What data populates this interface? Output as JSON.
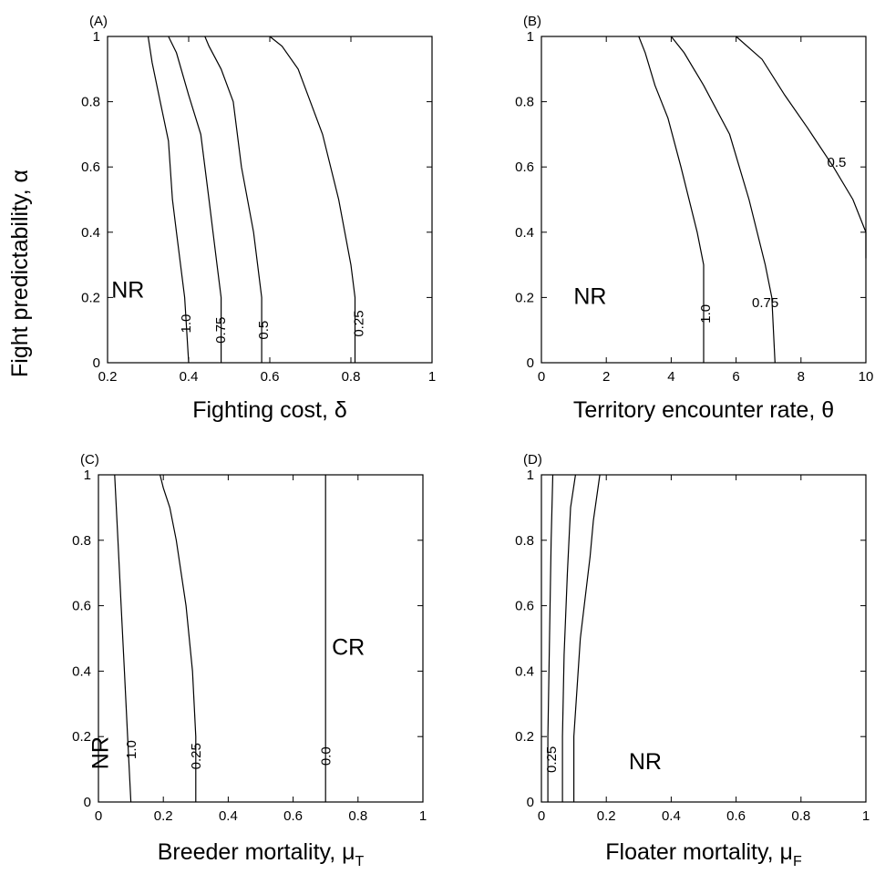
{
  "ylabel": "Fight predictability, α",
  "chart_data": [
    {
      "type": "line",
      "panel": "(A)",
      "xlabel_main": "Fighting cost, ",
      "xlabel_symbol": "δ",
      "xlabel_sub": "",
      "xlim": [
        0.2,
        1
      ],
      "ylim": [
        0,
        1
      ],
      "xticks": [
        "0.2",
        "0.4",
        "0.6",
        "0.8",
        "1"
      ],
      "yticks": [
        "0",
        "0.2",
        "0.4",
        "0.6",
        "0.8",
        "1"
      ],
      "series": [
        {
          "label": "1.0",
          "label_at": [
            0.405,
            0.12
          ],
          "label_rot": -90,
          "x": [
            0.4,
            0.39,
            0.37,
            0.36,
            0.35,
            0.33,
            0.31,
            0.3
          ],
          "y": [
            0,
            0.2,
            0.4,
            0.5,
            0.68,
            0.8,
            0.92,
            1.0
          ]
        },
        {
          "label": "0.75",
          "label_at": [
            0.49,
            0.1
          ],
          "label_rot": -90,
          "x": [
            0.48,
            0.48,
            0.47,
            0.45,
            0.43,
            0.4,
            0.37,
            0.35
          ],
          "y": [
            0,
            0.2,
            0.3,
            0.5,
            0.7,
            0.82,
            0.95,
            1.0
          ]
        },
        {
          "label": "0.5",
          "label_at": [
            0.595,
            0.1
          ],
          "label_rot": -90,
          "x": [
            0.58,
            0.58,
            0.56,
            0.53,
            0.51,
            0.48,
            0.45,
            0.44
          ],
          "y": [
            0,
            0.2,
            0.4,
            0.6,
            0.8,
            0.9,
            0.97,
            1.0
          ]
        },
        {
          "label": "0.25",
          "label_at": [
            0.83,
            0.12
          ],
          "label_rot": -90,
          "x": [
            0.81,
            0.81,
            0.8,
            0.77,
            0.73,
            0.7,
            0.67,
            0.63,
            0.6
          ],
          "y": [
            0,
            0.2,
            0.3,
            0.5,
            0.7,
            0.8,
            0.9,
            0.97,
            1.0
          ]
        }
      ],
      "regions": [
        {
          "text": "NR",
          "at": [
            0.25,
            0.2
          ]
        }
      ]
    },
    {
      "type": "line",
      "panel": "(B)",
      "xlabel_main": "Territory encounter rate, ",
      "xlabel_symbol": "θ",
      "xlabel_sub": "",
      "xlim": [
        0,
        10
      ],
      "ylim": [
        0,
        1
      ],
      "xticks": [
        "0",
        "2",
        "4",
        "6",
        "8",
        "10"
      ],
      "yticks": [
        "0",
        "0.2",
        "0.4",
        "0.6",
        "0.8",
        "1"
      ],
      "series": [
        {
          "label": "1.0",
          "label_at": [
            5.2,
            0.15
          ],
          "label_rot": -90,
          "x": [
            5.0,
            5.0,
            4.8,
            4.3,
            3.9,
            3.5,
            3.2,
            3.0
          ],
          "y": [
            0,
            0.3,
            0.4,
            0.6,
            0.75,
            0.85,
            0.95,
            1.0
          ]
        },
        {
          "label": "0.75",
          "label_at": [
            6.9,
            0.17
          ],
          "label_rot": 0,
          "x": [
            7.2,
            7.1,
            6.9,
            6.4,
            5.8,
            5.0,
            4.4,
            4.0
          ],
          "y": [
            0,
            0.2,
            0.3,
            0.5,
            0.7,
            0.85,
            0.95,
            1.0
          ]
        },
        {
          "label": "0.5",
          "label_at": [
            9.1,
            0.6
          ],
          "label_rot": 0,
          "x": [
            10,
            10,
            9.6,
            9.0,
            8.2,
            7.5,
            6.8,
            6.0
          ],
          "y": [
            0.32,
            0.4,
            0.5,
            0.6,
            0.72,
            0.82,
            0.93,
            1.0
          ]
        }
      ],
      "regions": [
        {
          "text": "NR",
          "at": [
            1.5,
            0.18
          ]
        }
      ]
    },
    {
      "type": "line",
      "panel": "(C)",
      "xlabel_main": "Breeder mortality, ",
      "xlabel_symbol": "μ",
      "xlabel_sub": "T",
      "xlim": [
        0,
        1
      ],
      "ylim": [
        0,
        1
      ],
      "xticks": [
        "0",
        "0.2",
        "0.4",
        "0.6",
        "0.8",
        "1"
      ],
      "yticks": [
        "0",
        "0.2",
        "0.4",
        "0.6",
        "0.8",
        "1"
      ],
      "series": [
        {
          "label": "1.0",
          "label_at": [
            0.115,
            0.16
          ],
          "label_rot": -90,
          "x": [
            0.1,
            0.09,
            0.08,
            0.07,
            0.06,
            0.05
          ],
          "y": [
            0,
            0.2,
            0.4,
            0.6,
            0.8,
            1.0
          ]
        },
        {
          "label": "0.25",
          "label_at": [
            0.315,
            0.14
          ],
          "label_rot": -90,
          "x": [
            0.3,
            0.3,
            0.29,
            0.27,
            0.24,
            0.22,
            0.2,
            0.19
          ],
          "y": [
            0,
            0.2,
            0.4,
            0.6,
            0.8,
            0.9,
            0.96,
            1.0
          ]
        },
        {
          "label": "0.0",
          "label_at": [
            0.715,
            0.14
          ],
          "label_rot": -90,
          "x": [
            0.7,
            0.7
          ],
          "y": [
            0,
            1.0
          ]
        }
      ],
      "regions": [
        {
          "text": "NR",
          "at": [
            0.03,
            0.15
          ],
          "rot": -90
        },
        {
          "text": "CR",
          "at": [
            0.77,
            0.45
          ]
        }
      ]
    },
    {
      "type": "line",
      "panel": "(D)",
      "xlabel_main": "Floater mortality, ",
      "xlabel_symbol": "μ",
      "xlabel_sub": "F",
      "xlim": [
        0,
        1
      ],
      "ylim": [
        0,
        1
      ],
      "xticks": [
        "0",
        "0.2",
        "0.4",
        "0.6",
        "0.8",
        "1"
      ],
      "yticks": [
        "0",
        "0.2",
        "0.4",
        "0.6",
        "0.8",
        "1"
      ],
      "series": [
        {
          "label": "",
          "x": [
            0.02,
            0.02,
            0.025,
            0.03,
            0.035
          ],
          "y": [
            0,
            0.2,
            0.5,
            0.8,
            1.0
          ]
        },
        {
          "label": "0.25",
          "label_at": [
            0.045,
            0.13
          ],
          "label_rot": -90,
          "x": [
            0.065,
            0.065,
            0.07,
            0.08,
            0.09,
            0.105
          ],
          "y": [
            0,
            0.2,
            0.45,
            0.7,
            0.9,
            1.0
          ]
        },
        {
          "label": "",
          "x": [
            0.1,
            0.1,
            0.12,
            0.15,
            0.16,
            0.18
          ],
          "y": [
            0,
            0.2,
            0.5,
            0.75,
            0.86,
            1.0
          ]
        }
      ],
      "regions": [
        {
          "text": "NR",
          "at": [
            0.32,
            0.1
          ]
        }
      ]
    }
  ]
}
